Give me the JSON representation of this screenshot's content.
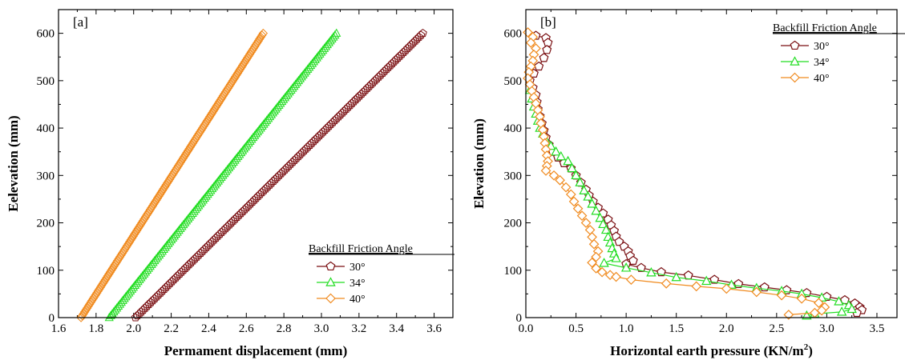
{
  "chart_data": [
    {
      "type": "scatter",
      "panel_label": "[a]",
      "xlabel": "Permament displacement (mm)",
      "ylabel": "Eelevation (mm)",
      "xlim": [
        1.6,
        3.7
      ],
      "ylim": [
        0,
        650
      ],
      "xticks": [
        "1.6",
        "1.8",
        "2.0",
        "2.2",
        "2.4",
        "2.6",
        "2.8",
        "3.0",
        "3.2",
        "3.4",
        "3.6"
      ],
      "yticks": [
        "0",
        "100",
        "200",
        "300",
        "400",
        "500",
        "600"
      ],
      "legend": {
        "title": "Backfill Friction Angle",
        "position": "bottom-right"
      },
      "series": [
        {
          "name": "30°",
          "color": "#7a0f12",
          "marker": "pentagon",
          "x0": 2.01,
          "x1": 3.54,
          "y0": 0,
          "y1": 600
        },
        {
          "name": "34°",
          "color": "#22dd22",
          "marker": "triangle",
          "x0": 1.87,
          "x1": 3.08,
          "y0": 0,
          "y1": 600
        },
        {
          "name": "40°",
          "color": "#f08a1e",
          "marker": "diamond",
          "x0": 1.72,
          "x1": 2.69,
          "y0": 0,
          "y1": 600
        }
      ]
    },
    {
      "type": "line",
      "panel_label": "[b]",
      "xlabel": "Horizontal earth pressure (KN/m",
      "xlabel_sup": "2",
      "xlabel_end": ")",
      "ylabel": "Elevation (mm)",
      "xlim": [
        0,
        3.7
      ],
      "ylim": [
        0,
        650
      ],
      "xticks": [
        "0.0",
        "0.5",
        "1.0",
        "1.5",
        "2.0",
        "2.5",
        "3.0",
        "3.5"
      ],
      "yticks": [
        "0",
        "100",
        "200",
        "300",
        "400",
        "500",
        "600"
      ],
      "legend": {
        "title": "Backfill Friction Angle",
        "position": "top-right"
      },
      "series": [
        {
          "name": "30°",
          "color": "#7a0f12",
          "marker": "pentagon",
          "points": [
            [
              0.1,
              595
            ],
            [
              0.2,
              590
            ],
            [
              0.22,
              580
            ],
            [
              0.21,
              565
            ],
            [
              0.18,
              548
            ],
            [
              0.13,
              530
            ],
            [
              0.08,
              515
            ],
            [
              0.04,
              500
            ],
            [
              0.07,
              485
            ],
            [
              0.1,
              470
            ],
            [
              0.11,
              455
            ],
            [
              0.12,
              440
            ],
            [
              0.14,
              425
            ],
            [
              0.16,
              410
            ],
            [
              0.18,
              395
            ],
            [
              0.2,
              380
            ],
            [
              0.23,
              365
            ],
            [
              0.27,
              350
            ],
            [
              0.32,
              338
            ],
            [
              0.38,
              326
            ],
            [
              0.45,
              315
            ],
            [
              0.5,
              300
            ],
            [
              0.55,
              285
            ],
            [
              0.6,
              270
            ],
            [
              0.63,
              258
            ],
            [
              0.67,
              245
            ],
            [
              0.72,
              232
            ],
            [
              0.77,
              220
            ],
            [
              0.82,
              207
            ],
            [
              0.85,
              195
            ],
            [
              0.88,
              183
            ],
            [
              0.9,
              171
            ],
            [
              0.93,
              160
            ],
            [
              0.98,
              150
            ],
            [
              1.02,
              140
            ],
            [
              1.04,
              130
            ],
            [
              1.07,
              120
            ],
            [
              1.0,
              113
            ],
            [
              1.15,
              105
            ],
            [
              1.35,
              96
            ],
            [
              1.62,
              89
            ],
            [
              1.88,
              80
            ],
            [
              2.12,
              71
            ],
            [
              2.38,
              64
            ],
            [
              2.6,
              58
            ],
            [
              2.8,
              52
            ],
            [
              3.0,
              44
            ],
            [
              3.18,
              37
            ],
            [
              3.28,
              30
            ],
            [
              3.33,
              22
            ],
            [
              3.35,
              16
            ],
            [
              3.3,
              10
            ]
          ]
        },
        {
          "name": "34°",
          "color": "#22dd22",
          "marker": "triangle",
          "points": [
            [
              0.04,
              480
            ],
            [
              0.06,
              462
            ],
            [
              0.08,
              445
            ],
            [
              0.1,
              430
            ],
            [
              0.12,
              415
            ],
            [
              0.14,
              400
            ],
            [
              0.17,
              388
            ],
            [
              0.2,
              374
            ],
            [
              0.25,
              362
            ],
            [
              0.3,
              350
            ],
            [
              0.35,
              340
            ],
            [
              0.42,
              330
            ],
            [
              0.46,
              315
            ],
            [
              0.5,
              300
            ],
            [
              0.54,
              285
            ],
            [
              0.58,
              268
            ],
            [
              0.62,
              255
            ],
            [
              0.66,
              240
            ],
            [
              0.7,
              225
            ],
            [
              0.74,
              210
            ],
            [
              0.77,
              197
            ],
            [
              0.8,
              185
            ],
            [
              0.82,
              170
            ],
            [
              0.84,
              158
            ],
            [
              0.86,
              146
            ],
            [
              0.88,
              135
            ],
            [
              0.9,
              125
            ],
            [
              0.78,
              115
            ],
            [
              1.0,
              105
            ],
            [
              1.25,
              95
            ],
            [
              1.5,
              85
            ],
            [
              1.8,
              77
            ],
            [
              2.05,
              69
            ],
            [
              2.3,
              62
            ],
            [
              2.55,
              56
            ],
            [
              2.75,
              50
            ],
            [
              2.95,
              42
            ],
            [
              3.12,
              34
            ],
            [
              3.22,
              26
            ],
            [
              3.25,
              18
            ],
            [
              3.15,
              12
            ],
            [
              2.88,
              8
            ],
            [
              2.8,
              4
            ]
          ]
        },
        {
          "name": "40°",
          "color": "#f08a1e",
          "marker": "diamond",
          "points": [
            [
              0.02,
              602
            ],
            [
              0.07,
              592
            ],
            [
              0.05,
              580
            ],
            [
              0.1,
              568
            ],
            [
              0.08,
              555
            ],
            [
              0.07,
              542
            ],
            [
              0.05,
              530
            ],
            [
              0.03,
              518
            ],
            [
              0.02,
              505
            ],
            [
              0.04,
              492
            ],
            [
              0.06,
              478
            ],
            [
              0.08,
              465
            ],
            [
              0.1,
              452
            ],
            [
              0.12,
              438
            ],
            [
              0.14,
              424
            ],
            [
              0.15,
              410
            ],
            [
              0.17,
              396
            ],
            [
              0.18,
              382
            ],
            [
              0.19,
              368
            ],
            [
              0.2,
              355
            ],
            [
              0.21,
              342
            ],
            [
              0.22,
              330
            ],
            [
              0.21,
              320
            ],
            [
              0.2,
              310
            ],
            [
              0.28,
              300
            ],
            [
              0.34,
              290
            ],
            [
              0.4,
              275
            ],
            [
              0.45,
              260
            ],
            [
              0.48,
              245
            ],
            [
              0.52,
              230
            ],
            [
              0.56,
              215
            ],
            [
              0.6,
              200
            ],
            [
              0.64,
              185
            ],
            [
              0.66,
              170
            ],
            [
              0.68,
              155
            ],
            [
              0.72,
              140
            ],
            [
              0.7,
              128
            ],
            [
              0.66,
              116
            ],
            [
              0.7,
              104
            ],
            [
              0.76,
              96
            ],
            [
              0.84,
              90
            ],
            [
              0.9,
              86
            ],
            [
              1.05,
              80
            ],
            [
              1.4,
              72
            ],
            [
              1.7,
              66
            ],
            [
              2.0,
              61
            ],
            [
              2.3,
              54
            ],
            [
              2.55,
              47
            ],
            [
              2.75,
              40
            ],
            [
              2.92,
              31
            ],
            [
              2.98,
              22
            ],
            [
              2.95,
              15
            ],
            [
              2.88,
              10
            ],
            [
              2.62,
              6
            ]
          ]
        }
      ]
    }
  ]
}
